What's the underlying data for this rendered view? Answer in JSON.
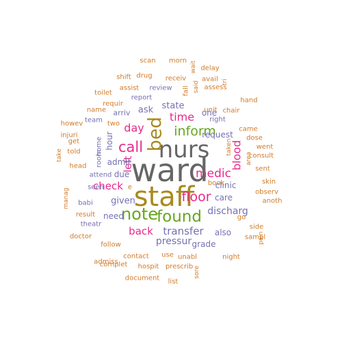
{
  "colors": {
    "orange": "#d17c2a",
    "gold": "#a88a1e",
    "gray": "#666666",
    "green": "#66a61e",
    "purple": "#7570b3",
    "pink": "#e7298a",
    "teal": "#1b9e77"
  },
  "words": [
    {
      "text": "ward",
      "color": "gray",
      "rotate": false
    },
    {
      "text": "staff",
      "color": "gold",
      "rotate": false
    },
    {
      "text": "nurs",
      "color": "gray",
      "rotate": false
    },
    {
      "text": "bed",
      "color": "gold",
      "rotate": true
    },
    {
      "text": "note",
      "color": "green",
      "rotate": false
    },
    {
      "text": "found",
      "color": "green",
      "rotate": false
    },
    {
      "text": "inform",
      "color": "green",
      "rotate": false
    },
    {
      "text": "call",
      "color": "pink",
      "rotate": false
    },
    {
      "text": "floor",
      "color": "pink",
      "rotate": false
    },
    {
      "text": "medic",
      "color": "pink",
      "rotate": false
    },
    {
      "text": "time",
      "color": "pink",
      "rotate": false
    },
    {
      "text": "day",
      "color": "pink",
      "rotate": false
    },
    {
      "text": "blood",
      "color": "pink",
      "rotate": true
    },
    {
      "text": "left",
      "color": "pink",
      "rotate": true
    },
    {
      "text": "check",
      "color": "pink",
      "rotate": false
    },
    {
      "text": "back",
      "color": "pink",
      "rotate": false
    },
    {
      "text": "transfer",
      "color": "purple",
      "rotate": false
    },
    {
      "text": "pressur",
      "color": "purple",
      "rotate": false
    },
    {
      "text": "discharg",
      "color": "purple",
      "rotate": false
    },
    {
      "text": "given",
      "color": "purple",
      "rotate": false
    },
    {
      "text": "state",
      "color": "purple",
      "rotate": false
    },
    {
      "text": "ask",
      "color": "purple",
      "rotate": false
    },
    {
      "text": "one",
      "color": "purple",
      "rotate": false
    },
    {
      "text": "request",
      "color": "purple",
      "rotate": false
    },
    {
      "text": "clinic",
      "color": "purple",
      "rotate": false
    },
    {
      "text": "care",
      "color": "purple",
      "rotate": false
    },
    {
      "text": "grade",
      "color": "purple",
      "rotate": false
    },
    {
      "text": "also",
      "color": "purple",
      "rotate": false
    },
    {
      "text": "due",
      "color": "purple",
      "rotate": false
    },
    {
      "text": "admit",
      "color": "purple",
      "rotate": false
    },
    {
      "text": "need",
      "color": "purple",
      "rotate": false
    },
    {
      "text": "hour",
      "color": "purple",
      "rotate": true
    },
    {
      "text": "arriv",
      "color": "purple",
      "rotate": false
    },
    {
      "text": "right",
      "color": "purple",
      "rotate": false
    },
    {
      "text": "report",
      "color": "purple",
      "rotate": false
    },
    {
      "text": "team",
      "color": "purple",
      "rotate": false
    },
    {
      "text": "room",
      "color": "purple",
      "rotate": true
    },
    {
      "text": "home",
      "color": "purple",
      "rotate": true
    },
    {
      "text": "attend",
      "color": "purple",
      "rotate": false
    },
    {
      "text": "seen",
      "color": "purple",
      "rotate": false
    },
    {
      "text": "babi",
      "color": "purple",
      "rotate": false
    },
    {
      "text": "theatr",
      "color": "purple",
      "rotate": false
    },
    {
      "text": "review",
      "color": "purple",
      "rotate": false
    },
    {
      "text": "scan",
      "color": "orange",
      "rotate": false
    },
    {
      "text": "morn",
      "color": "orange",
      "rotate": false
    },
    {
      "text": "wait",
      "color": "orange",
      "rotate": true
    },
    {
      "text": "delay",
      "color": "orange",
      "rotate": false
    },
    {
      "text": "shift",
      "color": "orange",
      "rotate": false
    },
    {
      "text": "drug",
      "color": "orange",
      "rotate": false
    },
    {
      "text": "receiv",
      "color": "orange",
      "rotate": false
    },
    {
      "text": "avail",
      "color": "orange",
      "rotate": false
    },
    {
      "text": "said",
      "color": "orange",
      "rotate": true
    },
    {
      "text": "tri",
      "color": "orange",
      "rotate": true
    },
    {
      "text": "assist",
      "color": "orange",
      "rotate": false
    },
    {
      "text": "fall",
      "color": "orange",
      "rotate": true
    },
    {
      "text": "assess",
      "color": "orange",
      "rotate": false
    },
    {
      "text": "toilet",
      "color": "orange",
      "rotate": false
    },
    {
      "text": "hand",
      "color": "orange",
      "rotate": false
    },
    {
      "text": "requir",
      "color": "orange",
      "rotate": false
    },
    {
      "text": "unit",
      "color": "orange",
      "rotate": false
    },
    {
      "text": "chair",
      "color": "orange",
      "rotate": false
    },
    {
      "text": "name",
      "color": "orange",
      "rotate": false
    },
    {
      "text": "howev",
      "color": "orange",
      "rotate": false
    },
    {
      "text": "two",
      "color": "orange",
      "rotate": false
    },
    {
      "text": "came",
      "color": "orange",
      "rotate": false
    },
    {
      "text": "injuri",
      "color": "orange",
      "rotate": false
    },
    {
      "text": "dose",
      "color": "orange",
      "rotate": false
    },
    {
      "text": "get",
      "color": "orange",
      "rotate": false
    },
    {
      "text": "taken",
      "color": "orange",
      "rotate": true
    },
    {
      "text": "went",
      "color": "orange",
      "rotate": false
    },
    {
      "text": "told",
      "color": "orange",
      "rotate": false
    },
    {
      "text": "area",
      "color": "orange",
      "rotate": true
    },
    {
      "text": "consult",
      "color": "orange",
      "rotate": false
    },
    {
      "text": "take",
      "color": "orange",
      "rotate": true
    },
    {
      "text": "head",
      "color": "orange",
      "rotate": false
    },
    {
      "text": "sent",
      "color": "orange",
      "rotate": false
    },
    {
      "text": "skin",
      "color": "orange",
      "rotate": false
    },
    {
      "text": "book",
      "color": "orange",
      "rotate": false
    },
    {
      "text": "e",
      "color": "orange",
      "rotate": false
    },
    {
      "text": "observ",
      "color": "orange",
      "rotate": false
    },
    {
      "text": "manag",
      "color": "orange",
      "rotate": true
    },
    {
      "text": "anoth",
      "color": "orange",
      "rotate": false
    },
    {
      "text": "result",
      "color": "orange",
      "rotate": false
    },
    {
      "text": "go",
      "color": "orange",
      "rotate": false
    },
    {
      "text": "side",
      "color": "orange",
      "rotate": false
    },
    {
      "text": "doctor",
      "color": "orange",
      "rotate": false
    },
    {
      "text": "sampl",
      "color": "orange",
      "rotate": false
    },
    {
      "text": "pain",
      "color": "orange",
      "rotate": true
    },
    {
      "text": "follow",
      "color": "orange",
      "rotate": false
    },
    {
      "text": "contact",
      "color": "orange",
      "rotate": false
    },
    {
      "text": "use",
      "color": "orange",
      "rotate": false
    },
    {
      "text": "unabl",
      "color": "orange",
      "rotate": false
    },
    {
      "text": "night",
      "color": "orange",
      "rotate": false
    },
    {
      "text": "admiss",
      "color": "orange",
      "rotate": false
    },
    {
      "text": "complet",
      "color": "orange",
      "rotate": false
    },
    {
      "text": "hospit",
      "color": "orange",
      "rotate": false
    },
    {
      "text": "prescrib",
      "color": "orange",
      "rotate": false
    },
    {
      "text": "sore",
      "color": "orange",
      "rotate": true
    },
    {
      "text": "document",
      "color": "orange",
      "rotate": false
    },
    {
      "text": "list",
      "color": "orange",
      "rotate": false
    }
  ]
}
